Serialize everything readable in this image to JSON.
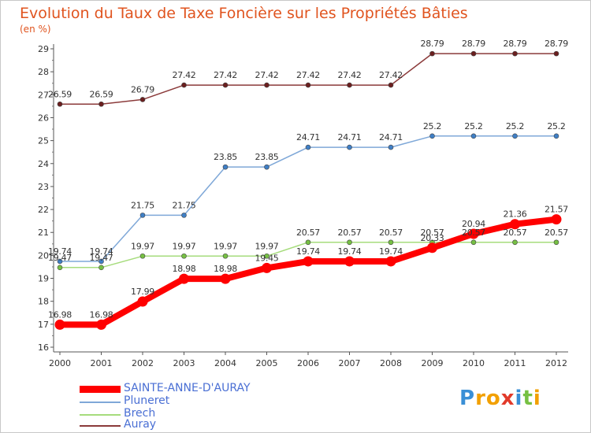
{
  "chart_data": {
    "type": "line",
    "title": "Evolution du Taux de Taxe Foncière sur les Propriétés Bâties",
    "subtitle": "(en %)",
    "xlabel": "",
    "ylabel": "",
    "ylim": [
      16,
      29
    ],
    "yticks": [
      "16",
      "17",
      "18",
      "19",
      "20",
      "21",
      "22",
      "23",
      "24",
      "25",
      "26",
      "27",
      "28",
      "29"
    ],
    "categories": [
      "2000",
      "2001",
      "2002",
      "2003",
      "2004",
      "2005",
      "2006",
      "2007",
      "2008",
      "2009",
      "2010",
      "2011",
      "2012"
    ],
    "series": [
      {
        "name": "SAINTE-ANNE-D'AURAY",
        "color": "#ff0000",
        "point_color": "#ff0000",
        "values": [
          16.98,
          16.98,
          17.99,
          18.98,
          18.98,
          19.45,
          19.74,
          19.74,
          19.74,
          20.33,
          20.94,
          21.36,
          21.57
        ],
        "labels": [
          "16.98",
          "16.98",
          "17.99",
          "18.98",
          "18.98",
          "19.45",
          "19.74",
          "19.74",
          "19.74",
          "20.33",
          "20.94",
          "21.36",
          "21.57"
        ]
      },
      {
        "name": "Pluneret",
        "color": "#7fa8d8",
        "point_color": "#3f7fc6",
        "values": [
          19.74,
          19.74,
          21.75,
          21.75,
          23.85,
          23.85,
          24.71,
          24.71,
          24.71,
          25.2,
          25.2,
          25.2,
          25.2
        ],
        "labels": [
          "19.74",
          "19.74",
          "21.75",
          "21.75",
          "23.85",
          "23.85",
          "24.71",
          "24.71",
          "24.71",
          "25.2",
          "25.2",
          "25.2",
          "25.2"
        ]
      },
      {
        "name": "Brech",
        "color": "#a6dc7c",
        "point_color": "#76c043",
        "values": [
          19.47,
          19.47,
          19.97,
          19.97,
          19.97,
          19.97,
          20.57,
          20.57,
          20.57,
          20.57,
          20.57,
          20.57,
          20.57
        ],
        "labels": [
          "19.47",
          "19.47",
          "19.97",
          "19.97",
          "19.97",
          "19.97",
          "20.57",
          "20.57",
          "20.57",
          "20.57",
          "20.57",
          "20.57",
          "20.57"
        ]
      },
      {
        "name": "Auray",
        "color": "#8b3a3a",
        "point_color": "#6b1f1f",
        "values": [
          26.59,
          26.59,
          26.79,
          27.42,
          27.42,
          27.42,
          27.42,
          27.42,
          27.42,
          28.79,
          28.79,
          28.79,
          28.79
        ],
        "labels": [
          "26.59",
          "26.59",
          "26.79",
          "27.42",
          "27.42",
          "27.42",
          "27.42",
          "27.42",
          "27.42",
          "28.79",
          "28.79",
          "28.79",
          "28.79"
        ]
      }
    ],
    "legend_position": "bottom-left",
    "grid": false
  },
  "legend": [
    {
      "label": "SAINTE-ANNE-D'AURAY",
      "color": "#ff0000"
    },
    {
      "label": "Pluneret",
      "color": "#7fa8d8"
    },
    {
      "label": "Brech",
      "color": "#a6dc7c"
    },
    {
      "label": "Auray",
      "color": "#8b3a3a"
    }
  ],
  "logo": {
    "text": "Proxiti",
    "letters": [
      {
        "ch": "P",
        "color": "#3a8fd6"
      },
      {
        "ch": "r",
        "color": "#f2a000"
      },
      {
        "ch": "o",
        "color": "#f2a000"
      },
      {
        "ch": "x",
        "color": "#e23a2a"
      },
      {
        "ch": "i",
        "color": "#3a8fd6"
      },
      {
        "ch": "t",
        "color": "#76c043"
      },
      {
        "ch": "i",
        "color": "#f2a000"
      }
    ]
  }
}
